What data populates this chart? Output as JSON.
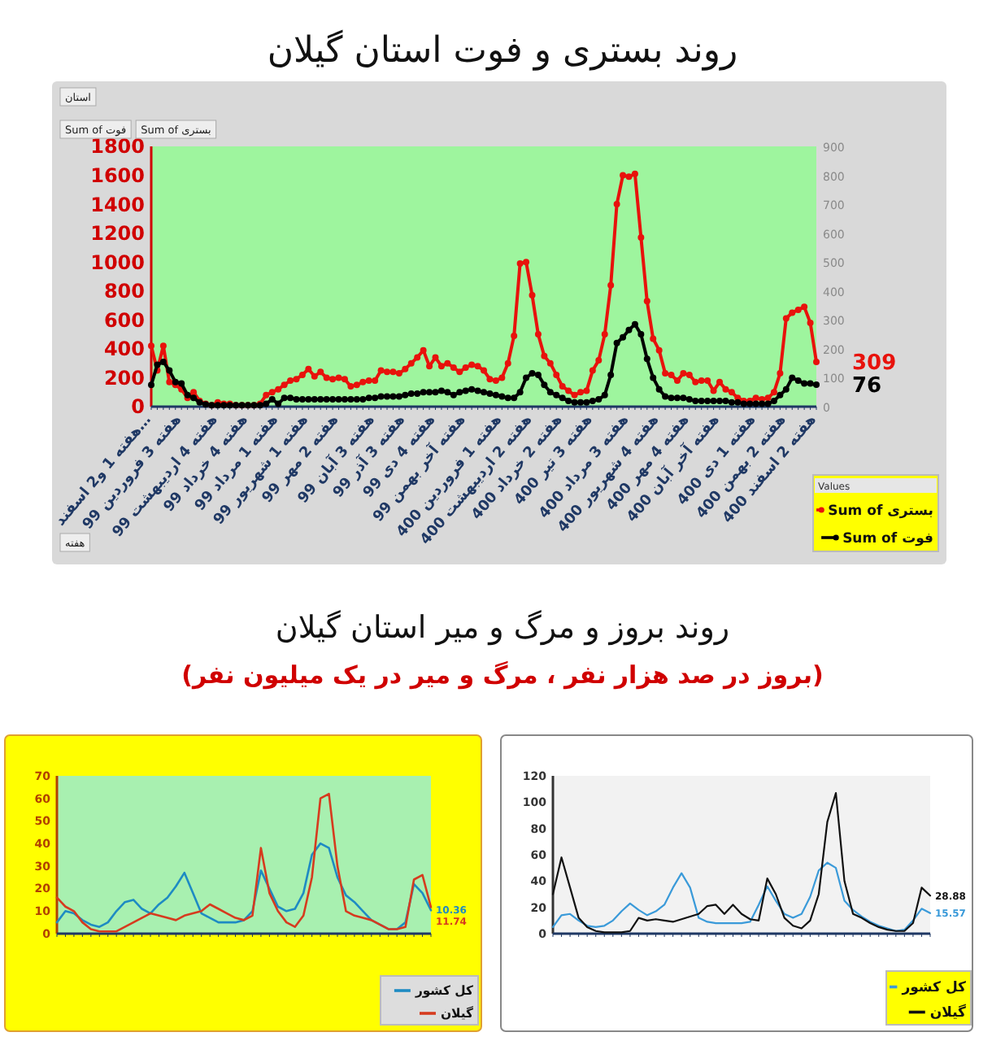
{
  "chart_data": [
    {
      "type": "line",
      "title": "روند بستری و فوت استان گیلان",
      "marker": "circle",
      "legend": "bottom right",
      "legend_title": "Values",
      "annotations": [
        "استان",
        "Sum of فوت",
        "Sum of بستری",
        "هفته"
      ],
      "ylim": [
        0,
        1800
      ],
      "yticks": [
        0,
        200,
        400,
        600,
        800,
        1000,
        1200,
        1400,
        1600,
        1800
      ],
      "y2lim": [
        0,
        900
      ],
      "y2ticks": [
        0,
        100,
        200,
        300,
        400,
        500,
        600,
        700,
        800,
        900
      ],
      "categories": [
        "هفته 1 و2 اسفند…",
        null,
        null,
        null,
        null,
        "هفته 3 فروردین 99",
        null,
        null,
        null,
        null,
        null,
        "هفته 4 اردیبهشت 99",
        null,
        null,
        null,
        null,
        "هفته 4 خرداد 99",
        null,
        null,
        null,
        null,
        "هفته 1 مرداد 99",
        null,
        null,
        null,
        null,
        "هفته 1 شهریور 99",
        null,
        null,
        null,
        null,
        "هفته 2 مهر 99",
        null,
        null,
        null,
        null,
        null,
        "هفته 3 آبان 99",
        null,
        null,
        null,
        null,
        "هفته 3 آذر 99",
        null,
        null,
        null,
        null,
        "هفته 4 دی 99",
        null,
        null,
        null,
        null,
        "هفته آخر بهمن 99",
        null,
        null,
        null,
        null,
        null,
        "هفته 1 فروردین 400",
        null,
        null,
        null,
        null,
        "هفته 2 اردیبهشت 400",
        null,
        null,
        null,
        null,
        "هفته 2 خرداد 400",
        null,
        null,
        null,
        null,
        "هفته 3 تیر 400",
        null,
        null,
        null,
        null,
        null,
        "هفته 3 مرداد 400",
        null,
        null,
        null,
        null,
        "هفته 4 شهریور 400",
        null,
        null,
        null,
        null,
        "هفته 4 مهر 400",
        null,
        null,
        null,
        null,
        "هفته آخر آبان 400",
        null,
        null,
        null,
        null,
        null,
        "هفته 1 دی 400",
        null,
        null,
        null,
        null,
        "هفته 2 بهمن 400",
        null,
        null,
        null,
        null,
        "هفته 2 اسفند 400"
      ],
      "series": [
        {
          "name": "Sum of بستری",
          "color": "#e8120c",
          "values": [
            420,
            250,
            420,
            170,
            150,
            120,
            60,
            100,
            40,
            20,
            10,
            30,
            20,
            20,
            10,
            10,
            10,
            10,
            20,
            80,
            100,
            120,
            150,
            180,
            190,
            220,
            260,
            210,
            240,
            200,
            190,
            200,
            190,
            140,
            150,
            170,
            180,
            180,
            250,
            240,
            240,
            230,
            260,
            300,
            340,
            390,
            280,
            340,
            280,
            300,
            270,
            240,
            270,
            290,
            280,
            250,
            190,
            180,
            200,
            300,
            490,
            990,
            1000,
            770,
            500,
            350,
            300,
            220,
            140,
            110,
            80,
            100,
            110,
            250,
            320,
            500,
            840,
            1400,
            1600,
            1590,
            1610,
            1170,
            730,
            470,
            390,
            230,
            220,
            180,
            230,
            220,
            170,
            180,
            180,
            110,
            170,
            120,
            100,
            60,
            40,
            40,
            60,
            50,
            60,
            100,
            230,
            610,
            650,
            670,
            690,
            580,
            309
          ],
          "value_labels": [
            null,
            null,
            null,
            null,
            null,
            null,
            null,
            null,
            null,
            null,
            null,
            null,
            null,
            null,
            null,
            null,
            null,
            null,
            null,
            null,
            null,
            null,
            null,
            null,
            null,
            null,
            null,
            null,
            null,
            null,
            null,
            null,
            null,
            null,
            null,
            null,
            null,
            null,
            null,
            null,
            null,
            null,
            null,
            null,
            null,
            null,
            null,
            null,
            null,
            null,
            null,
            null,
            null,
            null,
            null,
            null,
            null,
            null,
            null,
            null,
            null,
            null,
            null,
            null,
            null,
            null,
            null,
            null,
            null,
            null,
            null,
            null,
            null,
            null,
            null,
            null,
            null,
            null,
            null,
            null,
            null,
            null,
            null,
            null,
            null,
            null,
            null,
            null,
            null,
            null,
            null,
            null,
            null,
            null,
            null,
            null,
            null,
            null,
            null,
            null,
            null,
            null,
            null,
            null,
            null,
            null,
            null,
            null,
            null,
            null,
            "309"
          ]
        },
        {
          "name": "Sum of فوت",
          "color": "#000000",
          "axis": "y2",
          "values": [
            75,
            145,
            155,
            125,
            85,
            80,
            40,
            30,
            15,
            8,
            5,
            5,
            5,
            5,
            5,
            5,
            5,
            5,
            5,
            10,
            25,
            10,
            30,
            30,
            25,
            25,
            25,
            25,
            25,
            25,
            25,
            25,
            25,
            25,
            25,
            25,
            30,
            30,
            35,
            35,
            35,
            35,
            40,
            45,
            45,
            50,
            50,
            50,
            55,
            50,
            40,
            50,
            55,
            60,
            55,
            50,
            45,
            40,
            35,
            30,
            30,
            50,
            100,
            115,
            110,
            75,
            50,
            40,
            30,
            20,
            15,
            15,
            15,
            20,
            25,
            40,
            110,
            220,
            240,
            265,
            285,
            250,
            165,
            100,
            60,
            35,
            30,
            30,
            30,
            25,
            20,
            20,
            20,
            20,
            20,
            20,
            15,
            15,
            10,
            10,
            10,
            10,
            10,
            20,
            40,
            60,
            100,
            90,
            80,
            80,
            76
          ],
          "value_labels": [
            null,
            null,
            null,
            null,
            null,
            null,
            null,
            null,
            null,
            null,
            null,
            null,
            null,
            null,
            null,
            null,
            null,
            null,
            null,
            null,
            null,
            null,
            null,
            null,
            null,
            null,
            null,
            null,
            null,
            null,
            null,
            null,
            null,
            null,
            null,
            null,
            null,
            null,
            null,
            null,
            null,
            null,
            null,
            null,
            null,
            null,
            null,
            null,
            null,
            null,
            null,
            null,
            null,
            null,
            null,
            null,
            null,
            null,
            null,
            null,
            null,
            null,
            null,
            null,
            null,
            null,
            null,
            null,
            null,
            null,
            null,
            null,
            null,
            null,
            null,
            null,
            null,
            null,
            null,
            null,
            null,
            null,
            null,
            null,
            null,
            null,
            null,
            null,
            null,
            null,
            null,
            null,
            null,
            null,
            null,
            null,
            null,
            null,
            null,
            null,
            null,
            null,
            null,
            null,
            null,
            null,
            null,
            null,
            null,
            null,
            "76"
          ]
        }
      ]
    },
    {
      "type": "line",
      "title": "روند بروز و مرگ و میر استان گیلان",
      "subtitle": "(بروز در صد هزار نفر ، مرگ و میر در یک میلیون نفر)",
      "legend": "bottom right",
      "ylim": [
        0,
        70
      ],
      "yticks": [
        0,
        10,
        20,
        30,
        40,
        50,
        60,
        70
      ],
      "categories": [
        null,
        null,
        null,
        null,
        null,
        null,
        null,
        null,
        null,
        null,
        null,
        null,
        null,
        null,
        null,
        null,
        null,
        null,
        null,
        null,
        null,
        null,
        null,
        null,
        null,
        null,
        null,
        null,
        null,
        null,
        null,
        null,
        null,
        null,
        null,
        null,
        null,
        null,
        null,
        null,
        null,
        null,
        null,
        null,
        null
      ],
      "series": [
        {
          "name": "کل کشور",
          "color": "#1e8bc3",
          "values": [
            5,
            10,
            9,
            6,
            4,
            3,
            5,
            10,
            14,
            15,
            11,
            9,
            13,
            16,
            21,
            27,
            18,
            9,
            7,
            5,
            5,
            5,
            6,
            10,
            28,
            20,
            12,
            10,
            11,
            18,
            35,
            40,
            38,
            25,
            17,
            14,
            10,
            6,
            4,
            2,
            2,
            5,
            22,
            18,
            10.36
          ],
          "value_labels": [
            null,
            null,
            null,
            null,
            null,
            null,
            null,
            null,
            null,
            null,
            null,
            null,
            null,
            null,
            null,
            null,
            null,
            null,
            null,
            null,
            null,
            null,
            null,
            null,
            null,
            null,
            null,
            null,
            null,
            null,
            null,
            null,
            null,
            null,
            null,
            null,
            null,
            null,
            null,
            null,
            null,
            null,
            null,
            null,
            "10.36"
          ]
        },
        {
          "name": "گیلان",
          "color": "#d63b1e",
          "values": [
            16,
            12,
            10,
            5,
            2,
            1,
            1,
            1,
            3,
            5,
            7,
            9,
            8,
            7,
            6,
            8,
            9,
            10,
            13,
            11,
            9,
            7,
            6,
            8,
            38,
            18,
            10,
            5,
            3,
            8,
            25,
            60,
            62,
            30,
            10,
            8,
            7,
            6,
            4,
            2,
            2,
            3,
            24,
            26,
            11.74
          ],
          "value_labels": [
            null,
            null,
            null,
            null,
            null,
            null,
            null,
            null,
            null,
            null,
            null,
            null,
            null,
            null,
            null,
            null,
            null,
            null,
            null,
            null,
            null,
            null,
            null,
            null,
            null,
            null,
            null,
            null,
            null,
            null,
            null,
            null,
            null,
            null,
            null,
            null,
            null,
            null,
            null,
            null,
            null,
            null,
            null,
            null,
            "11.74"
          ]
        }
      ]
    },
    {
      "type": "line",
      "legend": "bottom right",
      "ylim": [
        0,
        120
      ],
      "yticks": [
        0,
        20,
        40,
        60,
        80,
        100,
        120
      ],
      "categories": [
        null,
        null,
        null,
        null,
        null,
        null,
        null,
        null,
        null,
        null,
        null,
        null,
        null,
        null,
        null,
        null,
        null,
        null,
        null,
        null,
        null,
        null,
        null,
        null,
        null,
        null,
        null,
        null,
        null,
        null,
        null,
        null,
        null,
        null,
        null,
        null,
        null,
        null,
        null,
        null,
        null,
        null,
        null,
        null,
        null
      ],
      "series": [
        {
          "name": "کل کشور",
          "color": "#3a9ad9",
          "values": [
            5,
            14,
            15,
            10,
            6,
            5,
            6,
            10,
            17,
            23,
            18,
            14,
            17,
            22,
            35,
            46,
            35,
            12,
            9,
            8,
            8,
            8,
            8,
            9,
            22,
            36,
            25,
            15,
            12,
            15,
            28,
            48,
            54,
            50,
            25,
            18,
            13,
            9,
            6,
            4,
            2,
            3,
            10,
            19,
            15.57
          ],
          "value_labels": [
            null,
            null,
            null,
            null,
            null,
            null,
            null,
            null,
            null,
            null,
            null,
            null,
            null,
            null,
            null,
            null,
            null,
            null,
            null,
            null,
            null,
            null,
            null,
            null,
            null,
            null,
            null,
            null,
            null,
            null,
            null,
            null,
            null,
            null,
            null,
            null,
            null,
            null,
            null,
            null,
            null,
            null,
            null,
            null,
            "15.57"
          ]
        },
        {
          "name": "گیلان",
          "color": "#111111",
          "values": [
            30,
            58,
            35,
            12,
            5,
            2,
            1,
            1,
            1,
            2,
            12,
            10,
            11,
            10,
            9,
            11,
            13,
            15,
            21,
            22,
            15,
            22,
            15,
            11,
            10,
            42,
            30,
            12,
            6,
            4,
            10,
            30,
            85,
            107,
            40,
            15,
            12,
            8,
            5,
            3,
            2,
            2,
            8,
            35,
            28.88
          ],
          "value_labels": [
            null,
            null,
            null,
            null,
            null,
            null,
            null,
            null,
            null,
            null,
            null,
            null,
            null,
            null,
            null,
            null,
            null,
            null,
            null,
            null,
            null,
            null,
            null,
            null,
            null,
            null,
            null,
            null,
            null,
            null,
            null,
            null,
            null,
            null,
            null,
            null,
            null,
            null,
            null,
            null,
            null,
            null,
            null,
            null,
            "28.88"
          ]
        }
      ]
    }
  ]
}
